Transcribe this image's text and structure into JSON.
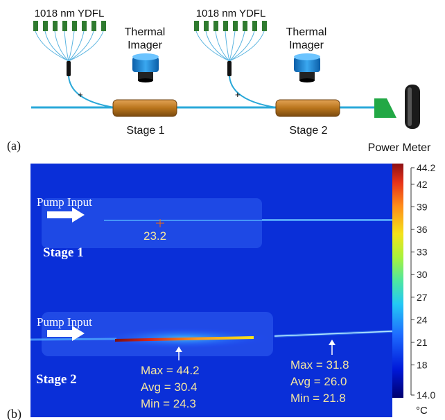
{
  "panel_a": {
    "label": "(a)",
    "laser1": "1018 nm YDFL",
    "laser2": "1018 nm YDFL",
    "imager1": [
      "Thermal",
      "Imager"
    ],
    "imager2": [
      "Thermal",
      "Imager"
    ],
    "stage1": "Stage 1",
    "stage2": "Stage 2",
    "power_meter": "Power Meter",
    "colors": {
      "fiber": "#2aa8d8",
      "diode": "#2f7a2f",
      "stage": "#b8741c",
      "imager": "#1e8fd6",
      "meter_head": "#22a845"
    }
  },
  "panel_b": {
    "label": "(b)",
    "pump_input_1": "Pump Input",
    "stage1_label": "Stage 1",
    "crosshair_value": "23.2",
    "pump_input_2": "Pump Input",
    "stage2_label": "Stage 2",
    "stats_left": [
      "Max = 44.2",
      "Avg = 30.4",
      "Min = 24.3"
    ],
    "stats_right": [
      "Max = 31.8",
      "Avg = 26.0",
      "Min = 21.8"
    ],
    "colorbar": {
      "min": 14.0,
      "max": 44.2,
      "ticks": [
        "44.2",
        "42",
        "39",
        "36",
        "33",
        "30",
        "27",
        "24",
        "21",
        "18",
        "14.0"
      ],
      "unit": "°C",
      "colors": [
        "#0000a0",
        "#0018d8",
        "#1e6cff",
        "#23c8f5",
        "#4ee6a0",
        "#a8f23c",
        "#f4e21a",
        "#ff8c1a",
        "#e63219",
        "#a0141a"
      ]
    }
  }
}
